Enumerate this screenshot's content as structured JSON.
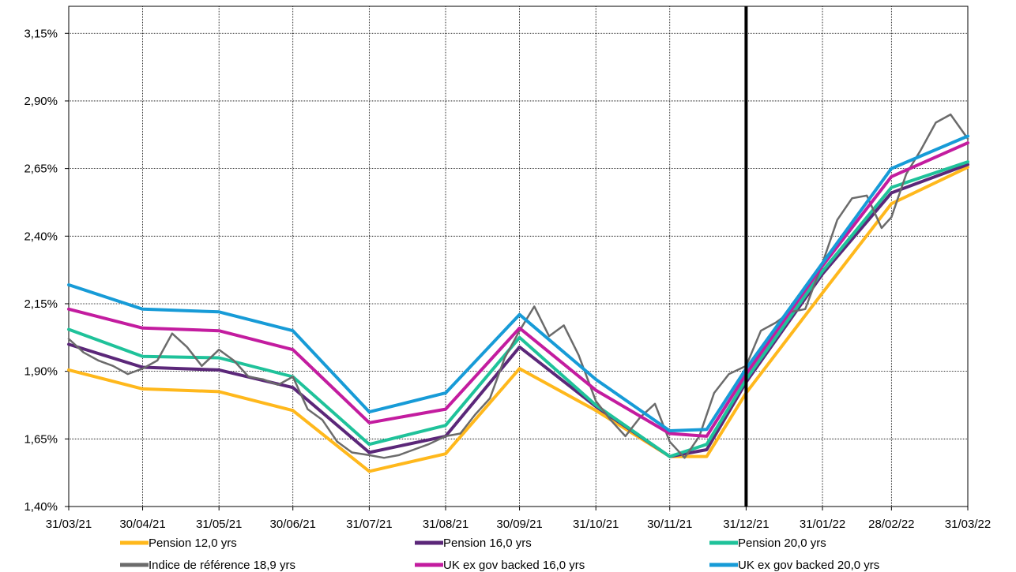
{
  "chart_data": {
    "type": "line",
    "x_ticks": [
      "31/03/21",
      "30/04/21",
      "31/05/21",
      "30/06/21",
      "31/07/21",
      "31/08/21",
      "30/09/21",
      "31/10/21",
      "30/11/21",
      "31/12/21",
      "31/01/22",
      "28/02/22",
      "31/03/22"
    ],
    "y_ticks": [
      "1,40%",
      "1,65%",
      "1,90%",
      "2,15%",
      "2,40%",
      "2,65%",
      "2,90%",
      "3,15%"
    ],
    "ylim": [
      1.4,
      3.25
    ],
    "xlim": [
      "31/03/21",
      "31/03/22"
    ],
    "grid": true,
    "legend_position": "bottom",
    "vertical_marker": {
      "x": "31/12/21"
    },
    "series": [
      {
        "name": "Pension 12,0 yrs",
        "color": "#FFB81C",
        "style": "thick",
        "x": [
          "31/03/21",
          "30/04/21",
          "31/05/21",
          "30/06/21",
          "31/07/21",
          "31/08/21",
          "30/09/21",
          "31/10/21",
          "30/11/21",
          "15/12/21",
          "31/12/21",
          "31/01/22",
          "28/02/22",
          "31/03/22"
        ],
        "y": [
          1.905,
          1.835,
          1.825,
          1.755,
          1.53,
          1.595,
          1.91,
          1.755,
          1.585,
          1.585,
          1.82,
          2.19,
          2.52,
          2.655
        ]
      },
      {
        "name": "Pension 16,0 yrs",
        "color": "#5B2779",
        "style": "thick",
        "x": [
          "31/03/21",
          "30/04/21",
          "31/05/21",
          "30/06/21",
          "31/07/21",
          "31/08/21",
          "30/09/21",
          "31/10/21",
          "30/11/21",
          "15/12/21",
          "31/12/21",
          "31/01/22",
          "28/02/22",
          "31/03/22"
        ],
        "y": [
          2.0,
          1.915,
          1.905,
          1.84,
          1.6,
          1.66,
          1.99,
          1.77,
          1.585,
          1.61,
          1.86,
          2.26,
          2.56,
          2.665
        ]
      },
      {
        "name": "Pension 20,0 yrs",
        "color": "#1FC29A",
        "style": "thick",
        "x": [
          "31/03/21",
          "30/04/21",
          "31/05/21",
          "30/06/21",
          "31/07/21",
          "31/08/21",
          "30/09/21",
          "31/10/21",
          "30/11/21",
          "15/12/21",
          "31/12/21",
          "31/01/22",
          "28/02/22",
          "31/03/22"
        ],
        "y": [
          2.055,
          1.955,
          1.95,
          1.88,
          1.63,
          1.7,
          2.025,
          1.775,
          1.585,
          1.63,
          1.87,
          2.27,
          2.58,
          2.675
        ]
      },
      {
        "name": "Indice de référence 18,9 yrs",
        "color": "#6B6B6B",
        "style": "thin",
        "x": [
          "31/03/21",
          "06/04/21",
          "12/04/21",
          "18/04/21",
          "24/04/21",
          "30/04/21",
          "06/05/21",
          "12/05/21",
          "18/05/21",
          "24/05/21",
          "31/05/21",
          "06/06/21",
          "12/06/21",
          "18/06/21",
          "24/06/21",
          "30/06/21",
          "06/07/21",
          "12/07/21",
          "18/07/21",
          "24/07/21",
          "31/07/21",
          "06/08/21",
          "12/08/21",
          "18/08/21",
          "24/08/21",
          "31/08/21",
          "06/09/21",
          "12/09/21",
          "18/09/21",
          "24/09/21",
          "30/09/21",
          "06/10/21",
          "12/10/21",
          "18/10/21",
          "24/10/21",
          "31/10/21",
          "06/11/21",
          "12/11/21",
          "18/11/21",
          "24/11/21",
          "30/11/21",
          "06/12/21",
          "12/12/21",
          "18/12/21",
          "24/12/21",
          "31/12/21",
          "06/01/22",
          "12/01/22",
          "18/01/22",
          "24/01/22",
          "31/01/22",
          "06/02/22",
          "12/02/22",
          "18/02/22",
          "24/02/22",
          "28/02/22",
          "06/03/22",
          "12/03/22",
          "18/03/22",
          "24/03/22",
          "31/03/22"
        ],
        "y": [
          2.02,
          1.97,
          1.94,
          1.92,
          1.89,
          1.91,
          1.94,
          2.04,
          1.99,
          1.92,
          1.98,
          1.94,
          1.88,
          1.87,
          1.85,
          1.88,
          1.76,
          1.72,
          1.64,
          1.6,
          1.59,
          1.58,
          1.59,
          1.61,
          1.63,
          1.66,
          1.67,
          1.74,
          1.8,
          1.95,
          2.05,
          2.14,
          2.03,
          2.07,
          1.96,
          1.79,
          1.72,
          1.66,
          1.73,
          1.78,
          1.64,
          1.58,
          1.66,
          1.82,
          1.89,
          1.92,
          2.05,
          2.08,
          2.12,
          2.13,
          2.3,
          2.46,
          2.54,
          2.55,
          2.43,
          2.47,
          2.63,
          2.72,
          2.82,
          2.85,
          2.76
        ]
      },
      {
        "name": "UK ex gov backed 16,0 yrs",
        "color": "#C31C9F",
        "style": "thick",
        "x": [
          "31/03/21",
          "30/04/21",
          "31/05/21",
          "30/06/21",
          "31/07/21",
          "31/08/21",
          "30/09/21",
          "31/10/21",
          "30/11/21",
          "15/12/21",
          "31/12/21",
          "31/01/22",
          "28/02/22",
          "31/03/22"
        ],
        "y": [
          2.13,
          2.06,
          2.05,
          1.98,
          1.71,
          1.76,
          2.06,
          1.83,
          1.67,
          1.66,
          1.89,
          2.29,
          2.62,
          2.745
        ]
      },
      {
        "name": "UK ex gov backed 20,0 yrs",
        "color": "#179BD7",
        "style": "thick",
        "x": [
          "31/03/21",
          "30/04/21",
          "31/05/21",
          "30/06/21",
          "31/07/21",
          "31/08/21",
          "30/09/21",
          "31/10/21",
          "30/11/21",
          "15/12/21",
          "31/12/21",
          "31/01/22",
          "28/02/22",
          "31/03/22"
        ],
        "y": [
          2.22,
          2.13,
          2.12,
          2.05,
          1.75,
          1.82,
          2.11,
          1.87,
          1.68,
          1.685,
          1.91,
          2.3,
          2.65,
          2.77
        ]
      }
    ]
  }
}
